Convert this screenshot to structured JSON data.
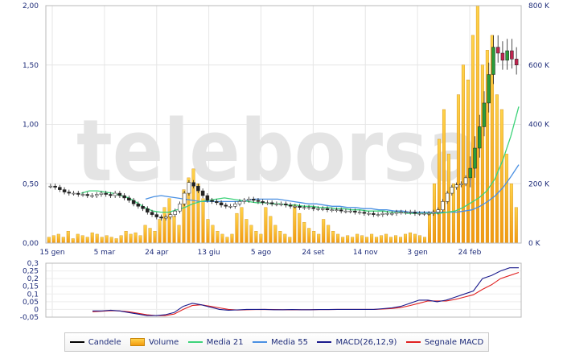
{
  "watermark": "teleborsa",
  "legend": [
    {
      "label": "Candele",
      "color": "#000000",
      "kind": "line"
    },
    {
      "label": "Volume",
      "color": "#f5a623",
      "kind": "box"
    },
    {
      "label": "Media 21",
      "color": "#3dd37a",
      "kind": "line"
    },
    {
      "label": "Media 55",
      "color": "#4a90e2",
      "kind": "line"
    },
    {
      "label": "MACD(26,12,9)",
      "color": "#1a1a8c",
      "kind": "line"
    },
    {
      "label": "Segnale MACD",
      "color": "#e02020",
      "kind": "line"
    }
  ],
  "chart_data": [
    {
      "type": "line",
      "panel": "price",
      "x_tick_labels": [
        "15 gen",
        "5 mar",
        "24 apr",
        "13 giu",
        "5 ago",
        "24 set",
        "14 nov",
        "3 gen",
        "24 feb"
      ],
      "y_tick_labels": [
        "0,00",
        "0,50",
        "1,00",
        "1,50",
        "2,00"
      ],
      "ylim": [
        0,
        2.0
      ],
      "y2_tick_labels": [
        "0 K",
        "200 K",
        "400 K",
        "600 K",
        "800 K"
      ],
      "y2lim": [
        0,
        800
      ],
      "grid": true,
      "candles_close": [
        0.48,
        0.47,
        0.45,
        0.43,
        0.42,
        0.42,
        0.41,
        0.41,
        0.4,
        0.4,
        0.41,
        0.42,
        0.41,
        0.4,
        0.42,
        0.4,
        0.38,
        0.36,
        0.33,
        0.31,
        0.29,
        0.26,
        0.24,
        0.22,
        0.21,
        0.22,
        0.24,
        0.27,
        0.33,
        0.42,
        0.51,
        0.48,
        0.44,
        0.4,
        0.36,
        0.35,
        0.34,
        0.32,
        0.31,
        0.31,
        0.33,
        0.35,
        0.36,
        0.37,
        0.36,
        0.35,
        0.34,
        0.34,
        0.33,
        0.33,
        0.33,
        0.32,
        0.31,
        0.31,
        0.3,
        0.3,
        0.3,
        0.29,
        0.29,
        0.29,
        0.28,
        0.28,
        0.28,
        0.27,
        0.27,
        0.27,
        0.26,
        0.26,
        0.25,
        0.25,
        0.24,
        0.24,
        0.25,
        0.25,
        0.25,
        0.26,
        0.26,
        0.26,
        0.26,
        0.25,
        0.25,
        0.25,
        0.25,
        0.26,
        0.28,
        0.35,
        0.42,
        0.47,
        0.49,
        0.5,
        0.55,
        0.63,
        0.8,
        0.98,
        1.18,
        1.42,
        1.65,
        1.6,
        1.54,
        1.62,
        1.55,
        1.5
      ],
      "media21": [
        0.42,
        0.44,
        0.44,
        0.43,
        0.42,
        0.4,
        0.38,
        0.34,
        0.3,
        0.27,
        0.26,
        0.26,
        0.28,
        0.3,
        0.33,
        0.35,
        0.36,
        0.37,
        0.38,
        0.37,
        0.36,
        0.35,
        0.34,
        0.34,
        0.33,
        0.33,
        0.32,
        0.32,
        0.31,
        0.31,
        0.3,
        0.3,
        0.29,
        0.29,
        0.28,
        0.28,
        0.27,
        0.27,
        0.27,
        0.26,
        0.26,
        0.25,
        0.25,
        0.25,
        0.25,
        0.25,
        0.26,
        0.27,
        0.3,
        0.34,
        0.38,
        0.44,
        0.54,
        0.7,
        0.9,
        1.15
      ],
      "media55": [
        0.37,
        0.39,
        0.4,
        0.39,
        0.38,
        0.37,
        0.36,
        0.35,
        0.35,
        0.35,
        0.35,
        0.35,
        0.35,
        0.36,
        0.37,
        0.37,
        0.37,
        0.37,
        0.36,
        0.35,
        0.34,
        0.33,
        0.33,
        0.32,
        0.31,
        0.31,
        0.3,
        0.3,
        0.29,
        0.29,
        0.28,
        0.28,
        0.27,
        0.27,
        0.26,
        0.26,
        0.26,
        0.26,
        0.26,
        0.26,
        0.26,
        0.27,
        0.28,
        0.31,
        0.35,
        0.4,
        0.47,
        0.56,
        0.66
      ],
      "volume_k": [
        20,
        25,
        30,
        20,
        40,
        15,
        30,
        25,
        20,
        35,
        30,
        20,
        25,
        20,
        15,
        25,
        40,
        30,
        35,
        25,
        60,
        50,
        40,
        80,
        120,
        150,
        90,
        60,
        180,
        220,
        250,
        200,
        150,
        80,
        60,
        40,
        30,
        20,
        30,
        100,
        120,
        80,
        60,
        40,
        30,
        120,
        90,
        60,
        40,
        30,
        20,
        130,
        100,
        70,
        50,
        40,
        30,
        80,
        60,
        40,
        30,
        20,
        25,
        20,
        30,
        25,
        20,
        30,
        20,
        25,
        30,
        20,
        25,
        20,
        30,
        35,
        30,
        25,
        20,
        100,
        200,
        350,
        450,
        300,
        200,
        500,
        600,
        550,
        700,
        800,
        600,
        650,
        700,
        500,
        450,
        300,
        200,
        120
      ]
    },
    {
      "type": "line",
      "panel": "macd",
      "y_tick_labels": [
        "-0,05",
        "0",
        "0,05",
        "0,1",
        "0,15",
        "0,2",
        "0,25",
        "0,3"
      ],
      "ylim": [
        -0.05,
        0.3
      ],
      "macd": [
        -0.01,
        -0.01,
        -0.005,
        -0.01,
        -0.02,
        -0.03,
        -0.04,
        -0.04,
        -0.035,
        -0.02,
        0.02,
        0.04,
        0.03,
        0.015,
        0.0,
        -0.005,
        -0.003,
        0.0,
        0.0,
        0.0,
        -0.002,
        -0.002,
        -0.001,
        -0.002,
        -0.002,
        -0.001,
        -0.001,
        0.0,
        0.0,
        0.0,
        0.0,
        0.0,
        0.005,
        0.01,
        0.02,
        0.04,
        0.06,
        0.06,
        0.05,
        0.06,
        0.08,
        0.1,
        0.12,
        0.2,
        0.22,
        0.25,
        0.27,
        0.27
      ],
      "signal": [
        -0.015,
        -0.012,
        -0.008,
        -0.01,
        -0.015,
        -0.025,
        -0.035,
        -0.04,
        -0.04,
        -0.03,
        0.0,
        0.025,
        0.03,
        0.02,
        0.01,
        0.0,
        -0.004,
        -0.002,
        -0.001,
        0.0,
        -0.001,
        -0.002,
        -0.002,
        -0.002,
        -0.002,
        -0.001,
        -0.001,
        0.0,
        0.0,
        0.0,
        0.0,
        0.0,
        0.002,
        0.006,
        0.012,
        0.025,
        0.04,
        0.055,
        0.055,
        0.055,
        0.065,
        0.08,
        0.095,
        0.13,
        0.16,
        0.2,
        0.22,
        0.24
      ]
    }
  ]
}
